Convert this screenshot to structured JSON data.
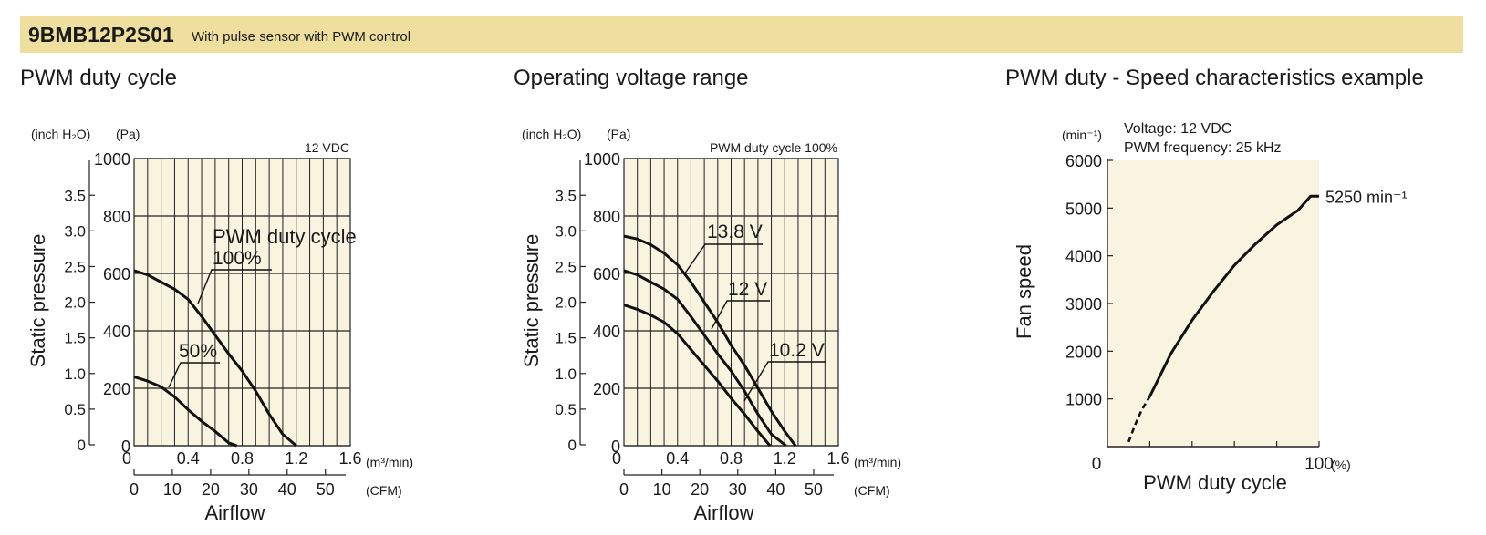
{
  "header": {
    "model": "9BMB12P2S01",
    "description": "With pulse sensor with PWM control",
    "background": "#efdf9e"
  },
  "colors": {
    "plot_background": "#f8f4e0",
    "grid": "#222222",
    "curve": "#111111"
  },
  "chart_data": [
    {
      "type": "line",
      "title": "PWM duty cycle",
      "condition": "12 VDC",
      "annotation": "PWM duty cycle",
      "xlabel": "Airflow",
      "xunit": "(m³/min)",
      "xunit_secondary": "(CFM)",
      "ylabel": "Static pressure",
      "yunit": "(Pa)",
      "yunit_secondary": "(inch H₂O)",
      "xlim": [
        0,
        1.6
      ],
      "ylim": [
        0,
        1000
      ],
      "x_ticks": [
        "0.4",
        "0.8",
        "1.2",
        "1.6"
      ],
      "x_origin_label": "0",
      "y_ticks": [
        "0",
        "200",
        "400",
        "600",
        "800",
        "1000"
      ],
      "y_ticks_secondary": [
        "0",
        "0.5",
        "1.0",
        "1.5",
        "2.0",
        "2.5",
        "3.0",
        "3.5"
      ],
      "x_ticks_secondary": [
        "0",
        "10",
        "20",
        "30",
        "40",
        "50"
      ],
      "grid": true,
      "series": [
        {
          "name": "100%",
          "x": [
            0,
            0.1,
            0.2,
            0.3,
            0.4,
            0.5,
            0.6,
            0.7,
            0.8,
            0.9,
            1.0,
            1.1,
            1.2
          ],
          "y": [
            610,
            595,
            570,
            545,
            510,
            450,
            385,
            320,
            260,
            190,
            110,
            40,
            0
          ]
        },
        {
          "name": "50%",
          "x": [
            0,
            0.1,
            0.2,
            0.3,
            0.4,
            0.5,
            0.6,
            0.7,
            0.76
          ],
          "y": [
            240,
            225,
            205,
            170,
            125,
            85,
            50,
            10,
            0
          ]
        }
      ]
    },
    {
      "type": "line",
      "title": "Operating voltage range",
      "condition": "PWM duty cycle 100%",
      "xlabel": "Airflow",
      "xunit": "(m³/min)",
      "xunit_secondary": "(CFM)",
      "ylabel": "Static pressure",
      "yunit": "(Pa)",
      "yunit_secondary": "(inch H₂O)",
      "xlim": [
        0,
        1.6
      ],
      "ylim": [
        0,
        1000
      ],
      "x_ticks": [
        "0.4",
        "0.8",
        "1.2",
        "1.6"
      ],
      "x_origin_label": "0",
      "y_ticks": [
        "0",
        "200",
        "400",
        "600",
        "800",
        "1000"
      ],
      "y_ticks_secondary": [
        "0",
        "0.5",
        "1.0",
        "1.5",
        "2.0",
        "2.5",
        "3.0",
        "3.5"
      ],
      "x_ticks_secondary": [
        "0",
        "10",
        "20",
        "30",
        "40",
        "50"
      ],
      "grid": true,
      "series": [
        {
          "name": "13.8 V",
          "x": [
            0,
            0.1,
            0.2,
            0.3,
            0.4,
            0.5,
            0.6,
            0.7,
            0.8,
            0.9,
            1.0,
            1.1,
            1.2,
            1.28
          ],
          "y": [
            730,
            720,
            700,
            670,
            630,
            570,
            500,
            430,
            350,
            280,
            200,
            120,
            50,
            0
          ]
        },
        {
          "name": "12 V",
          "x": [
            0,
            0.1,
            0.2,
            0.3,
            0.4,
            0.5,
            0.6,
            0.7,
            0.8,
            0.9,
            1.0,
            1.1,
            1.21
          ],
          "y": [
            610,
            595,
            570,
            545,
            510,
            450,
            385,
            320,
            260,
            190,
            110,
            40,
            0
          ]
        },
        {
          "name": "10.2 V",
          "x": [
            0,
            0.1,
            0.2,
            0.3,
            0.4,
            0.5,
            0.6,
            0.7,
            0.8,
            0.9,
            1.0,
            1.09
          ],
          "y": [
            490,
            475,
            455,
            430,
            390,
            335,
            280,
            225,
            165,
            110,
            50,
            0
          ]
        }
      ]
    },
    {
      "type": "line",
      "title": "PWM duty - Speed characteristics example",
      "condition_lines": [
        "Voltage: 12 VDC",
        "PWM frequency: 25 kHz"
      ],
      "xlabel": "PWM duty cycle",
      "xunit": "(%)",
      "ylabel": "Fan speed",
      "yunit": "(min⁻¹)",
      "xlim": [
        0,
        100
      ],
      "ylim": [
        0,
        6000
      ],
      "x_ticks": [
        "0",
        "100"
      ],
      "y_ticks": [
        "1000",
        "2000",
        "3000",
        "4000",
        "5000",
        "6000"
      ],
      "grid": false,
      "max_label": "5250 min⁻¹",
      "series": [
        {
          "name": "",
          "x": [
            20,
            30,
            40,
            50,
            60,
            70,
            80,
            90,
            96,
            100
          ],
          "y": [
            1050,
            1950,
            2650,
            3250,
            3800,
            4250,
            4650,
            4950,
            5250,
            5250
          ]
        }
      ],
      "dashed_segment": {
        "x": [
          10,
          13,
          16,
          20
        ],
        "y": [
          100,
          450,
          750,
          1050
        ]
      }
    }
  ]
}
